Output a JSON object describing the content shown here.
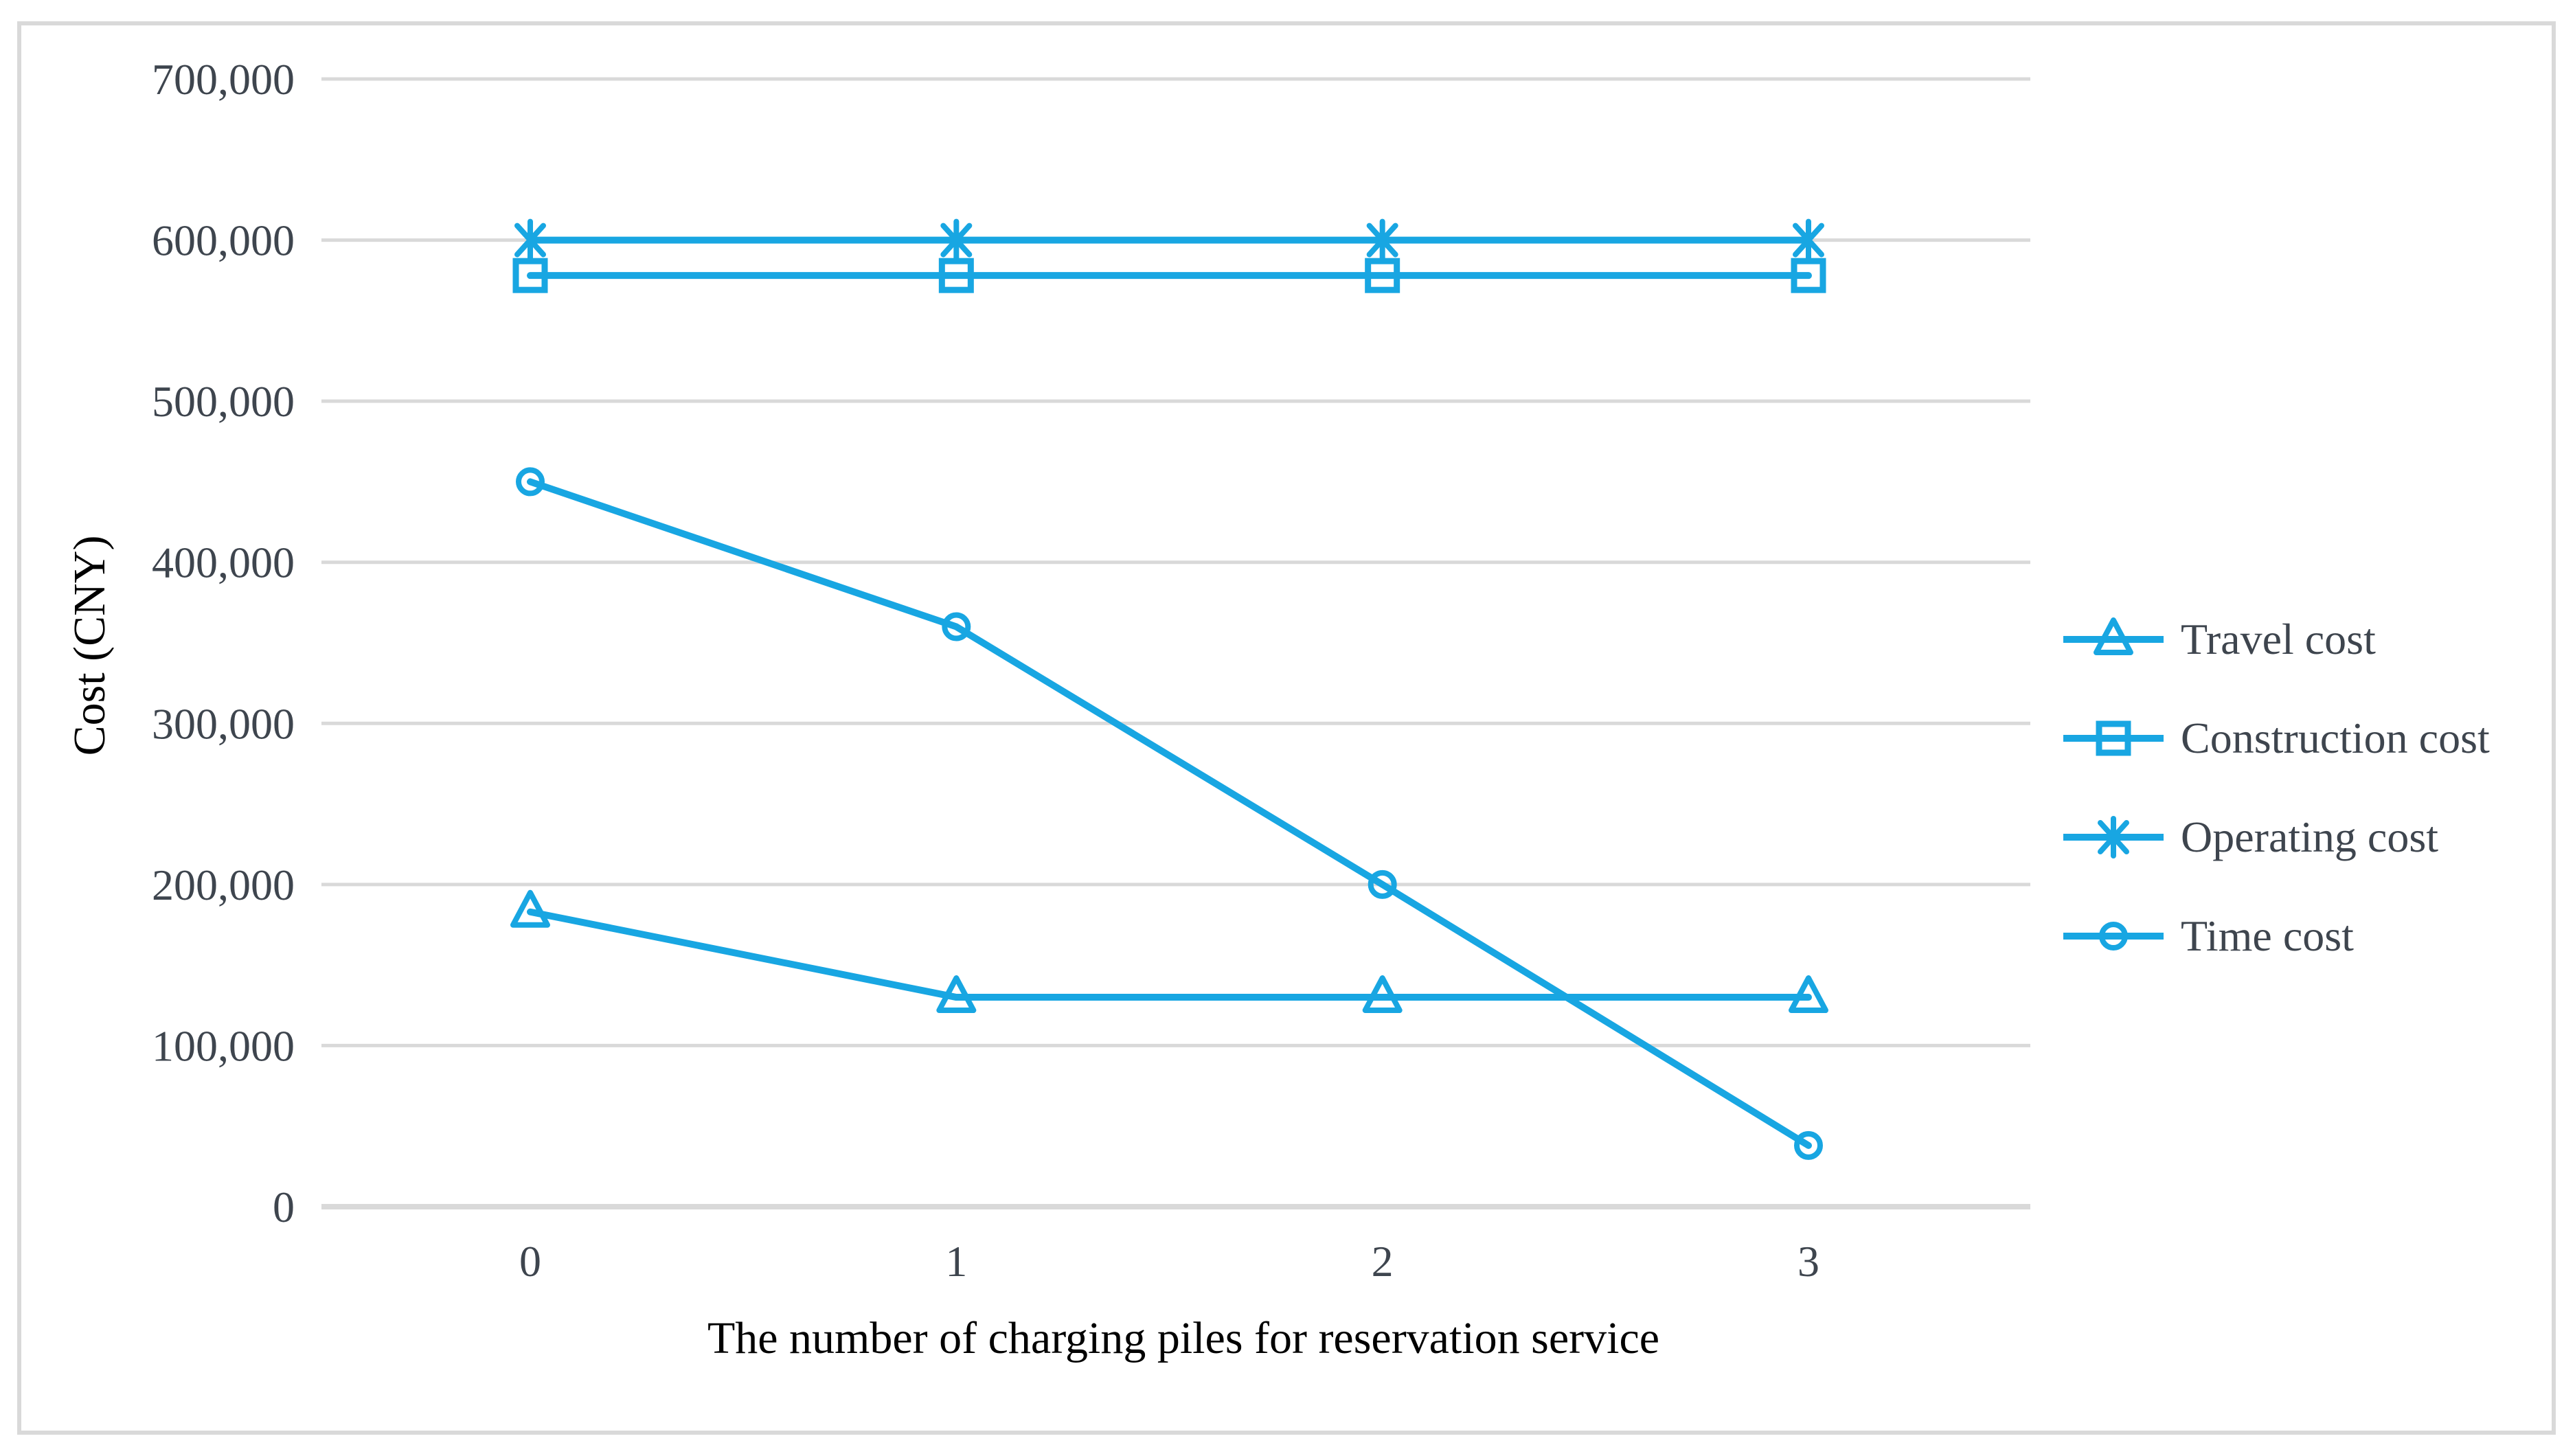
{
  "chart_data": {
    "type": "line",
    "title": "",
    "xlabel": "The number of charging piles for reservation service",
    "ylabel": "Cost (CNY)",
    "x": [
      0,
      1,
      2,
      3
    ],
    "x_tick_labels": [
      "0",
      "1",
      "2",
      "3"
    ],
    "y_ticks": [
      {
        "value": 0,
        "label": "0"
      },
      {
        "value": 100000,
        "label": "100,000"
      },
      {
        "value": 200000,
        "label": "200,000"
      },
      {
        "value": 300000,
        "label": "300,000"
      },
      {
        "value": 400000,
        "label": "400,000"
      },
      {
        "value": 500000,
        "label": "500,000"
      },
      {
        "value": 600000,
        "label": "600,000"
      },
      {
        "value": 700000,
        "label": "700,000"
      }
    ],
    "ylim": [
      0,
      700000
    ],
    "grid": true,
    "legend_position": "right",
    "series": [
      {
        "name": "Travel cost",
        "marker": "triangle",
        "values": [
          183000,
          130000,
          130000,
          130000
        ]
      },
      {
        "name": "Construction cost",
        "marker": "square",
        "values": [
          578000,
          578000,
          578000,
          578000
        ]
      },
      {
        "name": "Operating cost",
        "marker": "asterisk",
        "values": [
          600000,
          600000,
          600000,
          600000
        ]
      },
      {
        "name": "Time cost",
        "marker": "circle",
        "values": [
          450000,
          360000,
          200000,
          38000
        ]
      }
    ],
    "colors": {
      "series": "#18a6e2",
      "grid": "#d9d9d9",
      "axis_line": "#d9d9d9",
      "text": "#3e454e",
      "border": "#d9d9d9"
    }
  }
}
